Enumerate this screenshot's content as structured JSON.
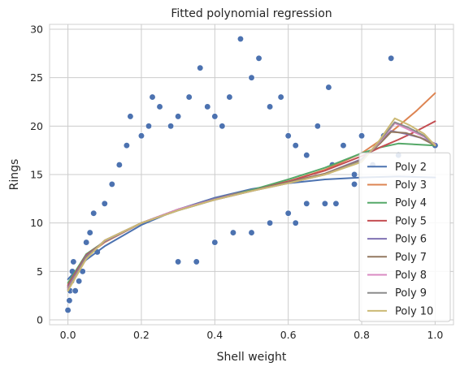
{
  "chart_data": {
    "type": "scatter",
    "title": "Fitted polynomial regression",
    "xlabel": "Shell weight",
    "ylabel": "Rings",
    "xlim": [
      -0.05,
      1.05
    ],
    "ylim": [
      -0.5,
      30.5
    ],
    "x_ticks": [
      0.0,
      0.2,
      0.4,
      0.6,
      0.8,
      1.0
    ],
    "x_tick_labels": [
      "0.0",
      "0.2",
      "0.4",
      "0.6",
      "0.8",
      "1.0"
    ],
    "y_ticks": [
      0,
      5,
      10,
      15,
      20,
      25,
      30
    ],
    "y_tick_labels": [
      "0",
      "5",
      "10",
      "15",
      "20",
      "25",
      "30"
    ],
    "grid": true,
    "legend_position": "lower-right",
    "scatter_color": "#4c72b0",
    "scatter_points": [
      [
        0.0,
        1
      ],
      [
        0.004,
        2
      ],
      [
        0.006,
        3
      ],
      [
        0.01,
        4
      ],
      [
        0.012,
        5
      ],
      [
        0.015,
        6
      ],
      [
        0.02,
        3
      ],
      [
        0.03,
        4
      ],
      [
        0.04,
        5
      ],
      [
        0.05,
        8
      ],
      [
        0.06,
        9
      ],
      [
        0.07,
        11
      ],
      [
        0.08,
        7
      ],
      [
        0.1,
        12
      ],
      [
        0.12,
        14
      ],
      [
        0.14,
        16
      ],
      [
        0.16,
        18
      ],
      [
        0.17,
        21
      ],
      [
        0.2,
        19
      ],
      [
        0.22,
        20
      ],
      [
        0.23,
        23
      ],
      [
        0.25,
        22
      ],
      [
        0.28,
        20
      ],
      [
        0.3,
        21
      ],
      [
        0.33,
        23
      ],
      [
        0.36,
        26
      ],
      [
        0.38,
        22
      ],
      [
        0.4,
        21
      ],
      [
        0.42,
        20
      ],
      [
        0.44,
        23
      ],
      [
        0.47,
        29
      ],
      [
        0.5,
        25
      ],
      [
        0.52,
        27
      ],
      [
        0.55,
        22
      ],
      [
        0.58,
        23
      ],
      [
        0.6,
        19
      ],
      [
        0.62,
        18
      ],
      [
        0.65,
        17
      ],
      [
        0.68,
        20
      ],
      [
        0.71,
        24
      ],
      [
        0.72,
        16
      ],
      [
        0.75,
        18
      ],
      [
        0.78,
        15
      ],
      [
        0.8,
        19
      ],
      [
        0.83,
        16
      ],
      [
        0.86,
        19
      ],
      [
        0.88,
        27
      ],
      [
        0.9,
        17
      ],
      [
        1.0,
        18
      ],
      [
        0.3,
        6
      ],
      [
        0.35,
        6
      ],
      [
        0.4,
        8
      ],
      [
        0.45,
        9
      ],
      [
        0.5,
        9
      ],
      [
        0.55,
        10
      ],
      [
        0.6,
        11
      ],
      [
        0.62,
        10
      ],
      [
        0.65,
        12
      ],
      [
        0.7,
        12
      ],
      [
        0.73,
        12
      ],
      [
        0.78,
        14
      ]
    ],
    "series": [
      {
        "name": "Poly 2",
        "color": "#4c72b0",
        "x": [
          0.0,
          0.05,
          0.1,
          0.2,
          0.3,
          0.4,
          0.5,
          0.6,
          0.7,
          0.8,
          0.9,
          1.0
        ],
        "y": [
          4.2,
          6.2,
          7.6,
          9.8,
          11.4,
          12.6,
          13.5,
          14.1,
          14.5,
          14.7,
          14.8,
          14.7
        ]
      },
      {
        "name": "Poly 3",
        "color": "#dd8452",
        "x": [
          0.0,
          0.05,
          0.1,
          0.2,
          0.3,
          0.4,
          0.5,
          0.6,
          0.7,
          0.8,
          0.85,
          0.9,
          0.95,
          1.0
        ],
        "y": [
          3.5,
          6.6,
          8.0,
          10.0,
          11.4,
          12.5,
          13.4,
          14.3,
          15.5,
          17.2,
          18.5,
          20.0,
          21.6,
          23.4
        ]
      },
      {
        "name": "Poly 4",
        "color": "#55a868",
        "x": [
          0.0,
          0.05,
          0.1,
          0.2,
          0.3,
          0.4,
          0.5,
          0.6,
          0.7,
          0.8,
          0.85,
          0.9,
          0.95,
          1.0
        ],
        "y": [
          3.8,
          6.8,
          8.1,
          10.0,
          11.3,
          12.4,
          13.4,
          14.5,
          15.7,
          17.2,
          17.8,
          18.2,
          18.1,
          18.0
        ]
      },
      {
        "name": "Poly 5",
        "color": "#c44e52",
        "x": [
          0.0,
          0.05,
          0.1,
          0.2,
          0.3,
          0.4,
          0.5,
          0.6,
          0.7,
          0.8,
          0.85,
          0.9,
          0.95,
          1.0
        ],
        "y": [
          3.6,
          6.7,
          8.1,
          10.0,
          11.4,
          12.4,
          13.3,
          14.3,
          15.4,
          16.9,
          17.8,
          18.6,
          19.5,
          20.5
        ]
      },
      {
        "name": "Poly 6",
        "color": "#8172b3",
        "x": [
          0.0,
          0.05,
          0.1,
          0.2,
          0.3,
          0.4,
          0.5,
          0.6,
          0.7,
          0.8,
          0.85,
          0.88,
          0.92,
          0.96,
          1.0
        ],
        "y": [
          3.4,
          6.6,
          8.1,
          10.0,
          11.4,
          12.5,
          13.3,
          14.2,
          15.1,
          16.6,
          18.3,
          19.5,
          19.2,
          18.8,
          18.2
        ]
      },
      {
        "name": "Poly 7",
        "color": "#937860",
        "x": [
          0.0,
          0.05,
          0.1,
          0.2,
          0.3,
          0.4,
          0.5,
          0.6,
          0.7,
          0.8,
          0.85,
          0.88,
          0.92,
          0.96,
          1.0
        ],
        "y": [
          3.3,
          6.5,
          8.2,
          10.0,
          11.3,
          12.4,
          13.3,
          14.2,
          15.1,
          16.5,
          18.2,
          19.4,
          19.3,
          18.8,
          18.0
        ]
      },
      {
        "name": "Poly 8",
        "color": "#da8bc3",
        "x": [
          0.0,
          0.05,
          0.1,
          0.2,
          0.3,
          0.4,
          0.5,
          0.6,
          0.7,
          0.8,
          0.85,
          0.89,
          0.93,
          0.97,
          1.0
        ],
        "y": [
          3.2,
          6.4,
          8.2,
          10.0,
          11.4,
          12.4,
          13.3,
          14.1,
          15.0,
          16.4,
          18.4,
          20.3,
          19.6,
          18.9,
          18.1
        ]
      },
      {
        "name": "Poly 9",
        "color": "#8c8c8c",
        "x": [
          0.0,
          0.05,
          0.1,
          0.2,
          0.3,
          0.4,
          0.5,
          0.6,
          0.7,
          0.8,
          0.85,
          0.89,
          0.93,
          0.97,
          1.0
        ],
        "y": [
          3.1,
          6.4,
          8.2,
          10.0,
          11.3,
          12.4,
          13.3,
          14.1,
          15.0,
          16.4,
          18.5,
          20.4,
          19.8,
          19.0,
          18.0
        ]
      },
      {
        "name": "Poly 10",
        "color": "#ccb974",
        "x": [
          0.0,
          0.05,
          0.1,
          0.2,
          0.3,
          0.4,
          0.5,
          0.6,
          0.7,
          0.8,
          0.85,
          0.89,
          0.93,
          0.97,
          1.0
        ],
        "y": [
          3.0,
          6.3,
          8.2,
          10.0,
          11.3,
          12.4,
          13.3,
          14.1,
          15.0,
          16.3,
          18.6,
          20.8,
          20.1,
          19.2,
          18.0
        ]
      }
    ]
  }
}
